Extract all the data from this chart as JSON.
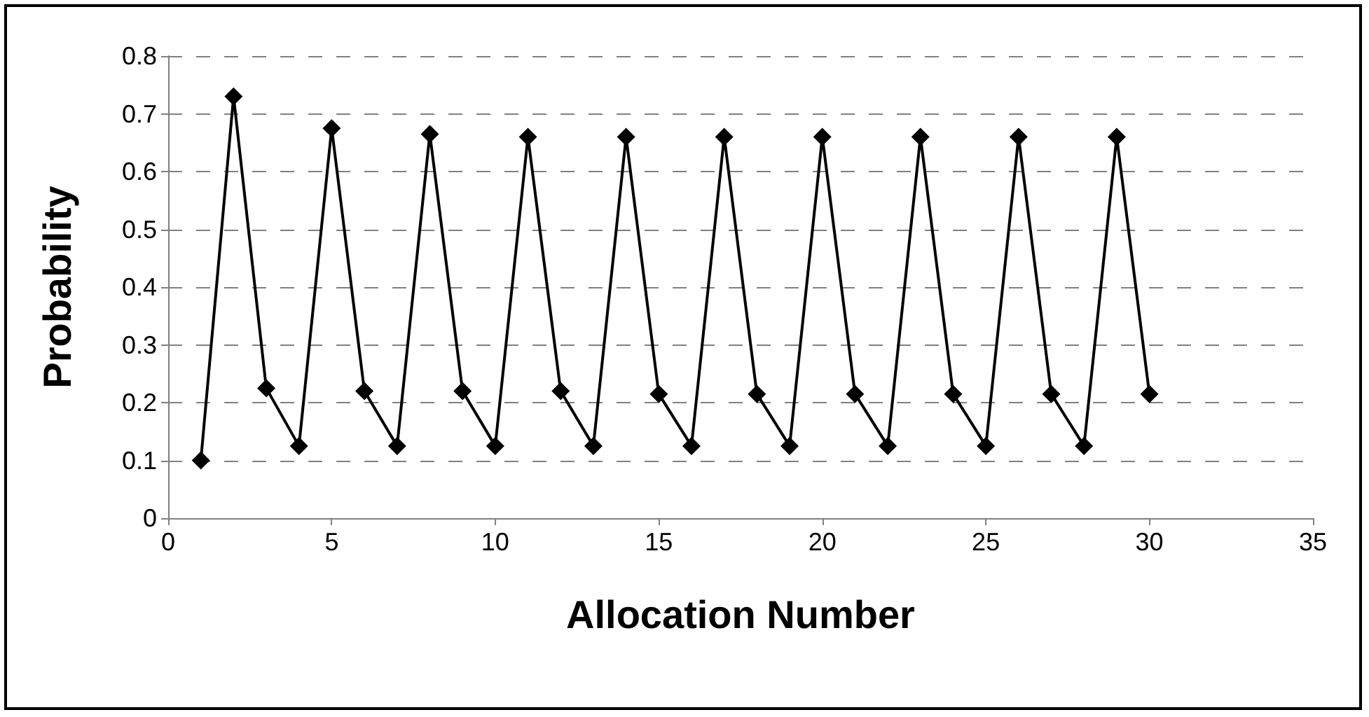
{
  "chart_data": {
    "type": "line",
    "xlabel": "Allocation Number",
    "ylabel": "Probability",
    "x": [
      1,
      2,
      3,
      4,
      5,
      6,
      7,
      8,
      9,
      10,
      11,
      12,
      13,
      14,
      15,
      16,
      17,
      18,
      19,
      20,
      21,
      22,
      23,
      24,
      25,
      26,
      27,
      28,
      29,
      30
    ],
    "series": [
      {
        "color": "#000000",
        "values": [
          0.1,
          0.73,
          0.225,
          0.125,
          0.675,
          0.22,
          0.125,
          0.665,
          0.22,
          0.125,
          0.66,
          0.22,
          0.125,
          0.66,
          0.215,
          0.125,
          0.66,
          0.215,
          0.125,
          0.66,
          0.215,
          0.125,
          0.66,
          0.215,
          0.125,
          0.66,
          0.215,
          0.125,
          0.66,
          0.215
        ]
      }
    ],
    "xlim": [
      0,
      35
    ],
    "xticks": [
      0,
      5,
      10,
      15,
      20,
      25,
      30,
      35
    ],
    "ylim": [
      0,
      0.8
    ],
    "yticks": [
      0,
      0.1,
      0.2,
      0.3,
      0.4,
      0.5,
      0.6,
      0.7,
      0.8
    ],
    "grid": "y",
    "marker": "diamond",
    "line_style": "solid"
  }
}
